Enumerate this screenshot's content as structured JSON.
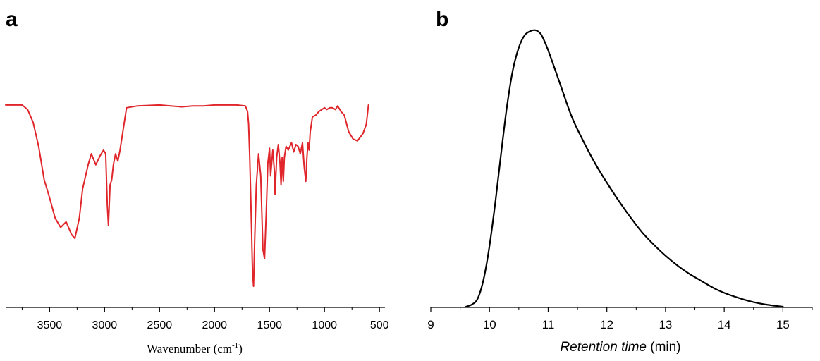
{
  "chart_data": [
    {
      "panel_label": "a",
      "type": "line",
      "xlabel_main": "Wavenumber (cm",
      "xlabel_sup": "-1",
      "xlabel_end": ")",
      "ylabel": "",
      "xlim": [
        3900,
        450
      ],
      "x_reversed": true,
      "y_units": "relative transmittance (0 = lowest point, 100 = baseline)",
      "xticks": [
        3500,
        3000,
        2500,
        2000,
        1500,
        1000,
        500
      ],
      "color": "#e0262b",
      "grid": false,
      "series": [
        {
          "x": [
            3900,
            3750,
            3700,
            3650,
            3600,
            3550,
            3500,
            3450,
            3400,
            3350,
            3300,
            3270,
            3230,
            3200,
            3150,
            3120,
            3080,
            3040,
            3010,
            2990,
            2975,
            2965,
            2950,
            2935,
            2920,
            2900,
            2880,
            2860,
            2800,
            2700,
            2500,
            2400,
            2300,
            2200,
            2100,
            2000,
            1900,
            1800,
            1720,
            1700,
            1690,
            1680,
            1665,
            1655,
            1645,
            1635,
            1620,
            1600,
            1580,
            1560,
            1545,
            1530,
            1515,
            1500,
            1490,
            1470,
            1455,
            1450,
            1435,
            1420,
            1405,
            1395,
            1385,
            1375,
            1365,
            1350,
            1330,
            1300,
            1280,
            1260,
            1240,
            1220,
            1200,
            1185,
            1170,
            1160,
            1150,
            1140,
            1130,
            1110,
            1080,
            1050,
            1000,
            980,
            950,
            930,
            900,
            880,
            850,
            820,
            780,
            740,
            700,
            650,
            620,
            600
          ],
          "y": [
            98.5,
            98.5,
            96,
            89,
            76,
            58,
            48,
            37,
            32,
            35,
            28,
            26,
            37,
            53,
            66,
            72,
            66,
            71,
            74,
            72,
            44,
            33,
            55,
            58,
            66,
            72,
            68,
            74,
            97,
            98,
            98.5,
            98,
            97.5,
            98,
            98,
            98.5,
            98.5,
            98.5,
            98,
            95,
            88,
            70,
            35,
            8,
            0,
            25,
            55,
            72,
            60,
            20,
            15,
            40,
            67,
            75,
            60,
            74,
            62,
            50,
            70,
            77,
            67,
            55,
            70,
            57,
            70,
            76,
            74,
            78,
            73,
            77,
            76,
            72,
            78,
            65,
            57,
            70,
            78,
            74,
            84,
            92,
            93,
            95,
            97,
            96,
            97,
            97,
            96,
            98,
            95,
            93,
            84,
            80,
            79,
            83,
            88,
            98.5
          ]
        }
      ]
    },
    {
      "panel_label": "b",
      "type": "line",
      "xlabel_italic": "Retention time",
      "xlabel_rest": " (min)",
      "ylabel": "",
      "xlim": [
        9,
        15.5
      ],
      "xticks": [
        9,
        10,
        11,
        12,
        13,
        14,
        15
      ],
      "y_units": "relative signal (0 = baseline, 100 = peak)",
      "color": "#000000",
      "grid": false,
      "series": [
        {
          "x": [
            9.6,
            9.7,
            9.8,
            9.9,
            10.0,
            10.1,
            10.2,
            10.3,
            10.4,
            10.5,
            10.6,
            10.7,
            10.78,
            10.85,
            10.9,
            11.0,
            11.2,
            11.4,
            11.6,
            11.8,
            12.0,
            12.2,
            12.4,
            12.6,
            12.8,
            13.0,
            13.2,
            13.4,
            13.6,
            13.8,
            14.0,
            14.2,
            14.4,
            14.6,
            14.8,
            15.0
          ],
          "y": [
            0,
            0.8,
            3,
            10,
            22,
            38,
            56,
            73,
            86,
            94,
            98.5,
            100,
            100.3,
            99.5,
            98,
            93,
            81,
            69,
            60,
            52,
            45,
            38.5,
            32.5,
            27,
            22.5,
            18.5,
            15,
            12,
            9.5,
            7,
            5,
            3.5,
            2.2,
            1.2,
            0.5,
            0
          ]
        }
      ]
    }
  ]
}
